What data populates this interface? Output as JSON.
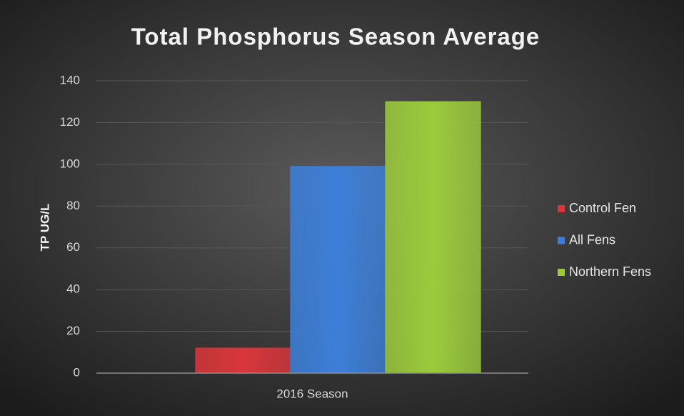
{
  "chart_data": {
    "type": "bar",
    "title": "Total Phosphorus Season Average",
    "y_label": "TP UG/L",
    "categories": [
      "2016 Season"
    ],
    "series": [
      {
        "name": "Control Fen",
        "color": "#d9363a",
        "values": [
          12
        ]
      },
      {
        "name": "All Fens",
        "color": "#3d7fd8",
        "values": [
          99
        ]
      },
      {
        "name": "Northern Fens",
        "color": "#9bcb3c",
        "values": [
          130
        ]
      }
    ],
    "ylim": [
      0,
      140
    ],
    "yticks": [
      0,
      20,
      40,
      60,
      80,
      100,
      120,
      140
    ],
    "grid": true,
    "legend": "right"
  }
}
